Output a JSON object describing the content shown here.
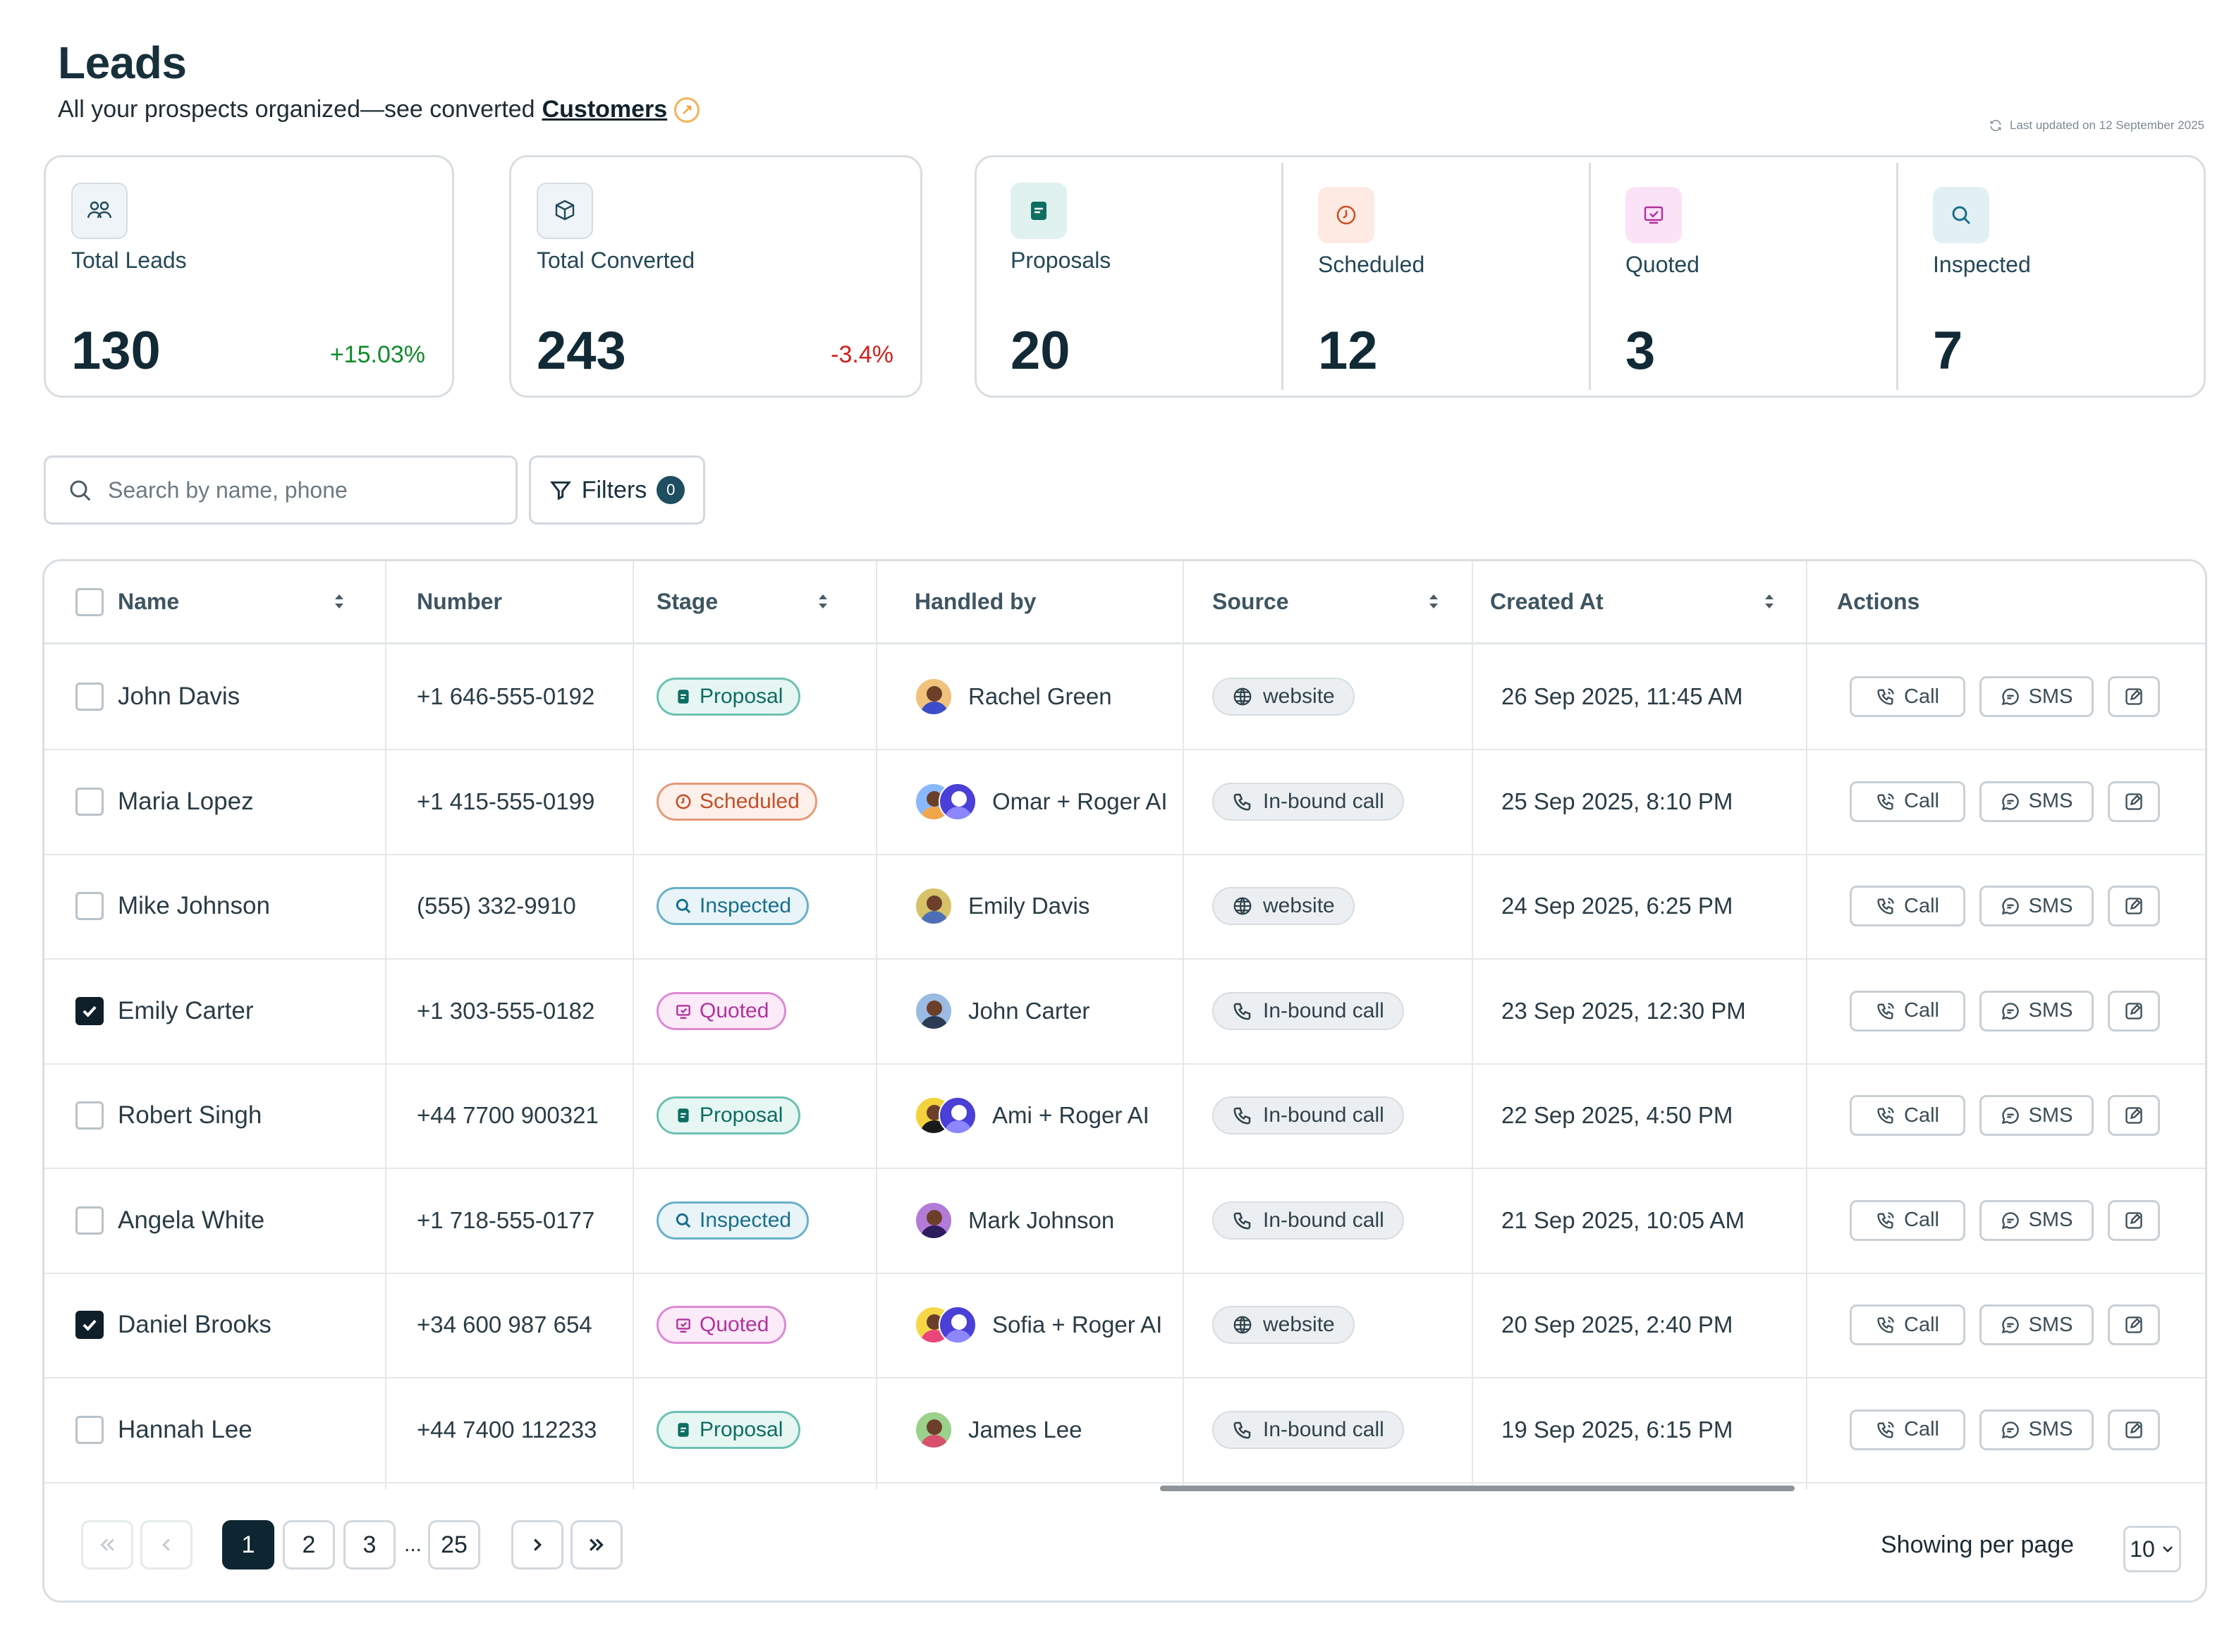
{
  "header": {
    "title": "Leads",
    "subtitle_prefix": "All your prospects organized—see converted",
    "subtitle_link": "Customers"
  },
  "last_updated": "Last updated on 12 September 2025",
  "kpis": [
    {
      "label": "Total Leads",
      "value": "130",
      "delta": "+15.03%",
      "delta_color": "#118a2c",
      "icon": "users-icon"
    },
    {
      "label": "Total Converted",
      "value": "243",
      "delta": "-3.4%",
      "delta_color": "#d1201f",
      "icon": "box-icon"
    }
  ],
  "stages": [
    {
      "label": "Proposals",
      "value": "20",
      "icon": "document-icon",
      "bg": "#e3f4f1",
      "fg": "#0f6e62"
    },
    {
      "label": "Scheduled",
      "value": "12",
      "icon": "clock-icon",
      "bg": "#fdeee8",
      "fg": "#d0512b"
    },
    {
      "label": "Quoted",
      "value": "3",
      "icon": "quote-icon",
      "bg": "#fbe7f8",
      "fg": "#b1309f"
    },
    {
      "label": "Inspected",
      "value": "7",
      "icon": "search-icon",
      "bg": "#e5f2f8",
      "fg": "#1a6f8c"
    }
  ],
  "search": {
    "placeholder": "Search by name, phone"
  },
  "filters": {
    "label": "Filters",
    "count": "0"
  },
  "columns": {
    "name": "Name",
    "number": "Number",
    "stage": "Stage",
    "handled_by": "Handled by",
    "source": "Source",
    "created_at": "Created At",
    "actions": "Actions"
  },
  "actions": {
    "call": "Call",
    "sms": "SMS"
  },
  "rows": [
    {
      "name": "John Davis",
      "number": "+1 646-555-0192",
      "stage": "Proposal",
      "handled_by": "Rachel Green",
      "source": "website",
      "created_at": "26 Sep 2025, 11:45 AM",
      "checked": false
    },
    {
      "name": "Maria Lopez",
      "number": "+1 415-555-0199",
      "stage": "Scheduled",
      "handled_by": "Omar + Roger AI",
      "source": "In-bound call",
      "created_at": "25 Sep 2025, 8:10 PM",
      "checked": false
    },
    {
      "name": "Mike Johnson",
      "number": "(555) 332-9910",
      "stage": "Inspected",
      "handled_by": "Emily Davis",
      "source": "website",
      "created_at": "24 Sep 2025, 6:25 PM",
      "checked": false
    },
    {
      "name": "Emily Carter",
      "number": "+1 303-555-0182",
      "stage": "Quoted",
      "handled_by": "John Carter",
      "source": "In-bound call",
      "created_at": "23 Sep 2025, 12:30 PM",
      "checked": true
    },
    {
      "name": "Robert Singh",
      "number": "+44 7700 900321",
      "stage": "Proposal",
      "handled_by": "Ami + Roger AI",
      "source": "In-bound call",
      "created_at": "22 Sep 2025, 4:50 PM",
      "checked": false
    },
    {
      "name": "Angela White",
      "number": "+1 718-555-0177",
      "stage": "Inspected",
      "handled_by": "Mark Johnson",
      "source": "In-bound call",
      "created_at": "21 Sep 2025, 10:05 AM",
      "checked": false
    },
    {
      "name": "Daniel Brooks",
      "number": "+34 600 987 654",
      "stage": "Quoted",
      "handled_by": "Sofia + Roger AI",
      "source": "website",
      "created_at": "20 Sep 2025, 2:40 PM",
      "checked": true
    },
    {
      "name": "Hannah Lee",
      "number": "+44 7400 112233",
      "stage": "Proposal",
      "handled_by": "James Lee",
      "source": "In-bound call",
      "created_at": "19 Sep 2025, 6:15 PM",
      "checked": false
    }
  ],
  "pagination": {
    "pages": [
      "1",
      "2",
      "3",
      "25"
    ],
    "ellipsis": "...",
    "current": "1",
    "per_page_label": "Showing per page",
    "per_page": "10"
  }
}
